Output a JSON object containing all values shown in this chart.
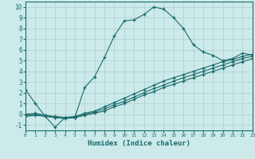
{
  "title": "",
  "xlabel": "Humidex (Indice chaleur)",
  "bg_color": "#cceaea",
  "grid_color": "#b0cccc",
  "line_color": "#1a6b6b",
  "xlim": [
    0,
    23
  ],
  "ylim": [
    -1.5,
    10.5
  ],
  "xticks": [
    0,
    1,
    2,
    3,
    4,
    5,
    6,
    7,
    8,
    9,
    10,
    11,
    12,
    13,
    14,
    15,
    16,
    17,
    18,
    19,
    20,
    21,
    22,
    23
  ],
  "yticks": [
    -1,
    0,
    1,
    2,
    3,
    4,
    5,
    6,
    7,
    8,
    9,
    10
  ],
  "curve1_x": [
    0,
    1,
    2,
    3,
    4,
    5,
    6,
    7,
    8,
    9,
    10,
    11,
    12,
    13,
    14,
    15,
    16,
    17,
    18,
    19,
    20,
    21,
    22,
    23
  ],
  "curve1_y": [
    2.3,
    1.0,
    -0.2,
    -1.2,
    -0.3,
    -0.3,
    2.5,
    3.5,
    5.3,
    7.3,
    8.7,
    8.8,
    9.3,
    10.0,
    9.8,
    9.0,
    8.0,
    6.5,
    5.8,
    5.5,
    5.0,
    5.2,
    5.7,
    5.5
  ],
  "curve2_x": [
    0,
    1,
    2,
    3,
    4,
    5,
    6,
    7,
    8,
    9,
    10,
    11,
    12,
    13,
    14,
    15,
    16,
    17,
    18,
    19,
    20,
    21,
    22,
    23
  ],
  "curve2_y": [
    0.0,
    0.1,
    -0.1,
    -0.2,
    -0.3,
    -0.2,
    0.1,
    0.3,
    0.7,
    1.1,
    1.5,
    1.9,
    2.3,
    2.7,
    3.1,
    3.4,
    3.7,
    4.0,
    4.3,
    4.6,
    4.9,
    5.1,
    5.4,
    5.6
  ],
  "curve3_x": [
    0,
    1,
    2,
    3,
    4,
    5,
    6,
    7,
    8,
    9,
    10,
    11,
    12,
    13,
    14,
    15,
    16,
    17,
    18,
    19,
    20,
    21,
    22,
    23
  ],
  "curve3_y": [
    -0.1,
    0.0,
    -0.1,
    -0.3,
    -0.3,
    -0.3,
    0.0,
    0.2,
    0.5,
    0.9,
    1.2,
    1.6,
    2.0,
    2.4,
    2.7,
    3.1,
    3.4,
    3.7,
    4.0,
    4.3,
    4.6,
    4.9,
    5.2,
    5.4
  ],
  "curve4_x": [
    0,
    1,
    2,
    3,
    4,
    5,
    6,
    7,
    8,
    9,
    10,
    11,
    12,
    13,
    14,
    15,
    16,
    17,
    18,
    19,
    20,
    21,
    22,
    23
  ],
  "curve4_y": [
    -0.2,
    -0.1,
    -0.2,
    -0.3,
    -0.4,
    -0.3,
    -0.1,
    0.1,
    0.3,
    0.7,
    1.0,
    1.4,
    1.8,
    2.1,
    2.5,
    2.8,
    3.1,
    3.4,
    3.7,
    4.0,
    4.3,
    4.6,
    4.9,
    5.2
  ]
}
